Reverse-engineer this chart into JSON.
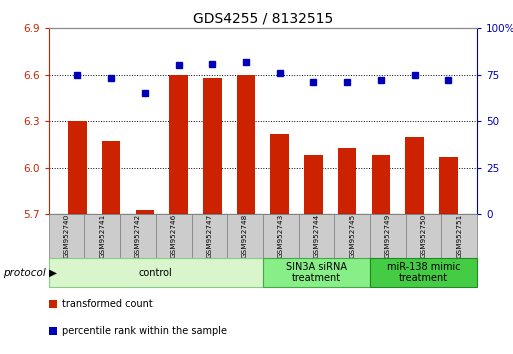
{
  "title": "GDS4255 / 8132515",
  "samples": [
    "GSM952740",
    "GSM952741",
    "GSM952742",
    "GSM952746",
    "GSM952747",
    "GSM952748",
    "GSM952743",
    "GSM952744",
    "GSM952745",
    "GSM952749",
    "GSM952750",
    "GSM952751"
  ],
  "red_values": [
    6.3,
    6.17,
    5.73,
    6.6,
    6.58,
    6.6,
    6.22,
    6.08,
    6.13,
    6.08,
    6.2,
    6.07
  ],
  "blue_values": [
    75,
    73,
    65,
    80,
    81,
    82,
    76,
    71,
    71,
    72,
    75,
    72
  ],
  "ylim_left": [
    5.7,
    6.9
  ],
  "yticks_left": [
    5.7,
    6.0,
    6.3,
    6.6,
    6.9
  ],
  "ylim_right": [
    0,
    100
  ],
  "yticks_right": [
    0,
    25,
    50,
    75,
    100
  ],
  "ytick_labels_right": [
    "0",
    "25",
    "50",
    "75",
    "100%"
  ],
  "groups": [
    {
      "label": "control",
      "start": 0,
      "end": 6,
      "color": "#d8f5cc",
      "edge": "#88cc88"
    },
    {
      "label": "SIN3A siRNA\ntreatment",
      "start": 6,
      "end": 9,
      "color": "#88ee88",
      "edge": "#44aa44"
    },
    {
      "label": "miR-138 mimic\ntreatment",
      "start": 9,
      "end": 12,
      "color": "#44cc44",
      "edge": "#228822"
    }
  ],
  "bar_color": "#cc2200",
  "dot_color": "#0000bb",
  "grid_color": "#000000",
  "tick_color_left": "#cc2200",
  "tick_color_right": "#0000bb",
  "box_color": "#cccccc",
  "box_edge": "#888888",
  "legend_items": [
    {
      "color": "#cc2200",
      "label": "transformed count"
    },
    {
      "color": "#0000bb",
      "label": "percentile rank within the sample"
    }
  ]
}
